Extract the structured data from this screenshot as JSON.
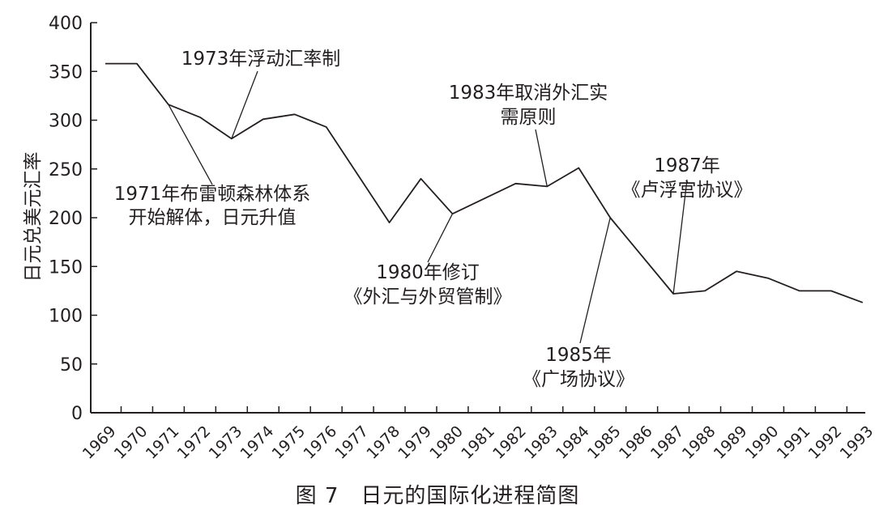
{
  "chart_data": {
    "type": "line",
    "ylabel": "日元兑美元汇率",
    "ylim": [
      0,
      400
    ],
    "yticks": [
      0,
      50,
      100,
      150,
      200,
      250,
      300,
      350,
      400
    ],
    "categories": [
      "1969",
      "1970",
      "1971",
      "1972",
      "1973",
      "1974",
      "1975",
      "1976",
      "1977",
      "1978",
      "1979",
      "1980",
      "1981",
      "1982",
      "1983",
      "1984",
      "1985",
      "1986",
      "1987",
      "1988",
      "1989",
      "1990",
      "1991",
      "1992",
      "1993"
    ],
    "series": [
      {
        "x": [
          1969.0,
          1970.0,
          1971.0,
          1972.0,
          1973.0,
          1974.0,
          1975.0,
          1976.0,
          1978.0,
          1979.0,
          1980.0,
          1982.0,
          1983.0,
          1984.0,
          1985.0,
          1987.0,
          1988.0,
          1989.0,
          1990.0,
          1991.0,
          1992.0,
          1993.0
        ],
        "y": [
          358,
          358,
          316,
          303,
          281,
          301,
          306,
          293,
          195,
          240,
          204,
          235,
          232,
          251,
          200,
          122,
          125,
          145,
          138,
          125,
          125,
          113
        ]
      }
    ],
    "annotations": [
      {
        "lines": [
          "1971年布雷顿森林体系",
          "开始解体，日元升值"
        ],
        "x": 1971.0,
        "y": 316
      },
      {
        "lines": [
          "1973年浮动汇率制"
        ],
        "x": 1973.0,
        "y": 281
      },
      {
        "lines": [
          "1980年修订",
          "《外汇与外贸管制》"
        ],
        "x": 1980.0,
        "y": 204
      },
      {
        "lines": [
          "1983年取消外汇实",
          "需原则"
        ],
        "x": 1983.0,
        "y": 232
      },
      {
        "lines": [
          "1985年",
          "《广场协议》"
        ],
        "x": 1985.0,
        "y": 200
      },
      {
        "lines": [
          "1987年",
          "《卢浮宫协议》"
        ],
        "x": 1987.0,
        "y": 122
      }
    ]
  },
  "caption": "图 7　日元的国际化进程简图"
}
